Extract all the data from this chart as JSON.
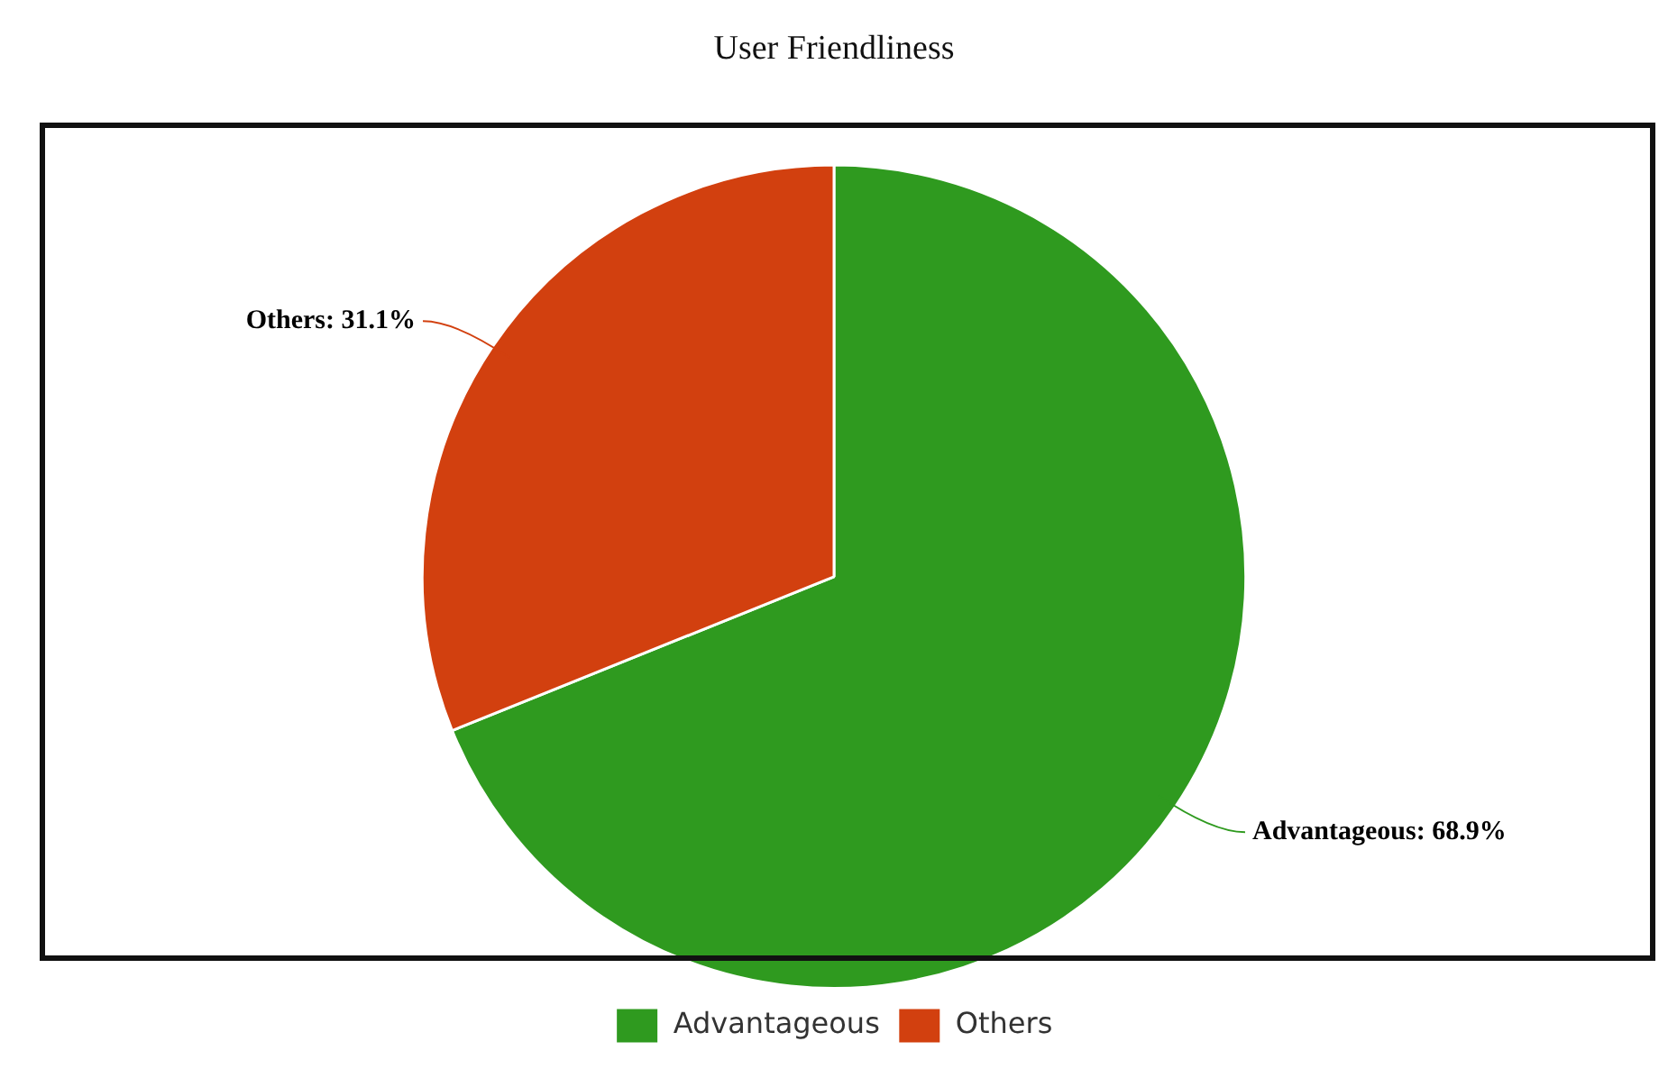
{
  "chart_data": {
    "type": "pie",
    "title": "User Friendliness",
    "categories": [
      "Advantageous",
      "Others"
    ],
    "values": [
      68.9,
      31.1
    ],
    "colors": [
      "#2f9a1f",
      "#d2400f"
    ],
    "value_labels": [
      "Advantageous: 68.9%",
      "Others: 31.1%"
    ],
    "legend": "bottom"
  }
}
